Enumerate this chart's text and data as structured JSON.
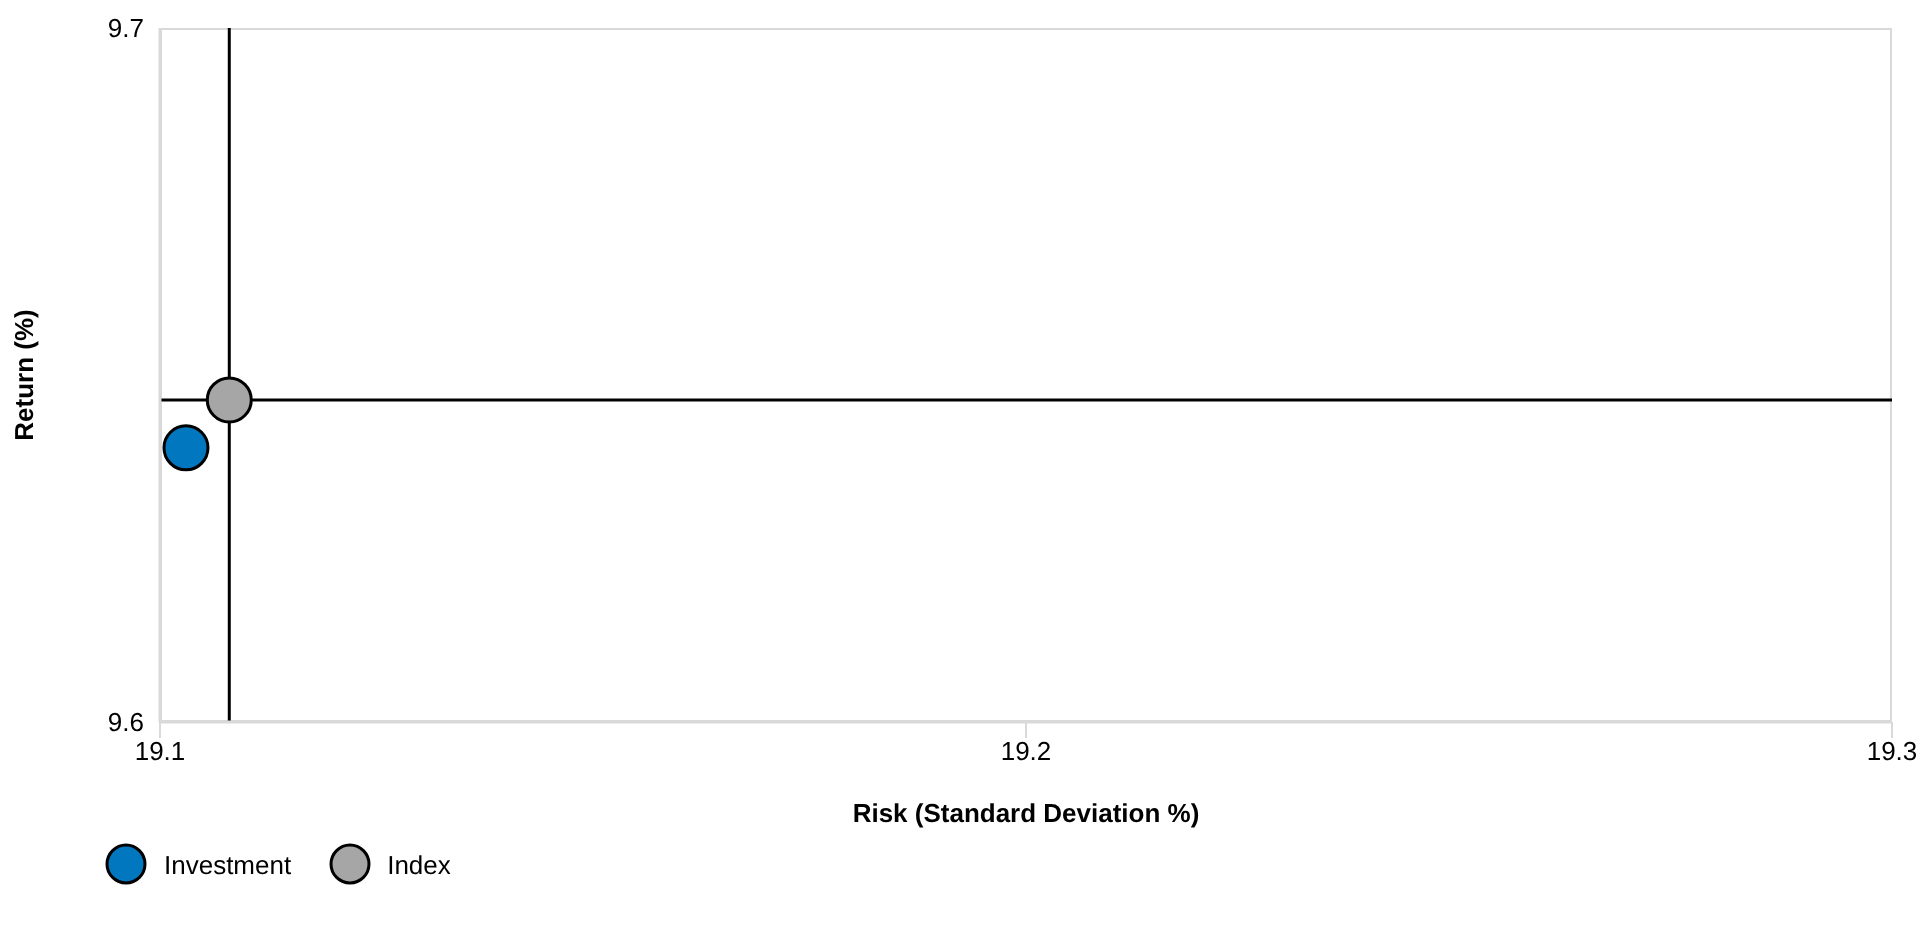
{
  "chart_data": {
    "type": "scatter",
    "xlabel": "Risk (Standard Deviation %)",
    "ylabel": "Return (%)",
    "xlim": [
      19.1,
      19.3
    ],
    "xticks": [
      19.1,
      19.2,
      19.3
    ],
    "ylim": [
      9.6,
      9.7
    ],
    "yticks": [
      9.6,
      9.7
    ],
    "grid": false,
    "legend": "bottom left",
    "marker": "circle",
    "series": [
      {
        "name": "Investment",
        "color": "#0077be",
        "x": [
          19.103
        ],
        "values": [
          9.6395
        ]
      },
      {
        "name": "Index",
        "color": "#a6a6a6",
        "x": [
          19.108
        ],
        "values": [
          9.6464
        ]
      }
    ],
    "ref_lines": [
      {
        "axis": "x",
        "value": 19.108,
        "color": "#000000"
      },
      {
        "axis": "y",
        "value": 9.6464,
        "color": "#000000"
      }
    ]
  }
}
